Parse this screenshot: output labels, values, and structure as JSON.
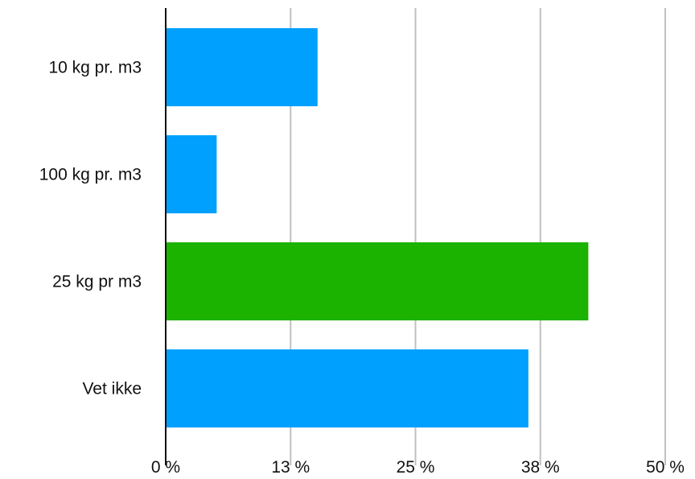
{
  "chart_data": {
    "type": "bar",
    "orientation": "horizontal",
    "categories": [
      "10 kg pr. m3",
      "100 kg pr. m3",
      "25 kg pr m3",
      "Vet ikke"
    ],
    "values": [
      15.2,
      5.1,
      42.3,
      36.3
    ],
    "unit": "%",
    "xlim": [
      0,
      50
    ],
    "x_ticks": [
      0,
      12.5,
      25,
      37.5,
      50
    ],
    "x_tick_labels": [
      "0 %",
      "13 %",
      "25 %",
      "38 %",
      "50 %"
    ],
    "title": "",
    "xlabel": "",
    "ylabel": "",
    "grid": true,
    "legend": "none",
    "colors": {
      "default": "#00A0FF",
      "highlight": "#1CB200",
      "grid": "#C0C0C0",
      "axis": "#111111"
    },
    "highlight_index": 2
  }
}
